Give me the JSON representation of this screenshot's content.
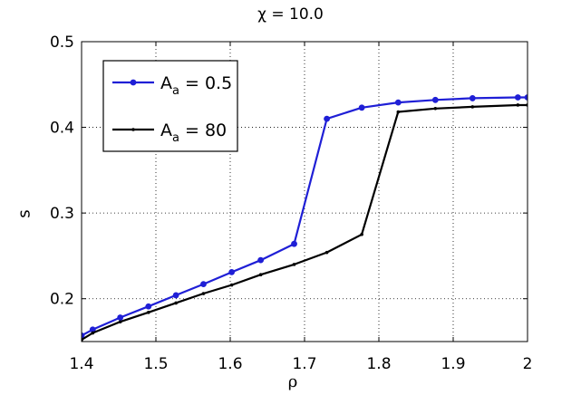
{
  "chart_data": {
    "type": "line",
    "title": "χ = 10.0",
    "xlabel": "ρ",
    "ylabel": "s",
    "xlim": [
      1.4,
      2.0
    ],
    "ylim": [
      0.15,
      0.5
    ],
    "xticks": [
      "1.4",
      "1.5",
      "1.6",
      "1.7",
      "1.8",
      "1.9",
      "2"
    ],
    "yticks": [
      "0.2",
      "0.3",
      "0.4",
      "0.5"
    ],
    "xtick_values": [
      1.4,
      1.5,
      1.6,
      1.7,
      1.8,
      1.9,
      2.0
    ],
    "ytick_values": [
      0.2,
      0.3,
      0.4,
      0.5
    ],
    "grid": true,
    "legend_position": "top-left",
    "series": [
      {
        "name_main": "A",
        "name_sub": "a",
        "name_rest": " = 0.5",
        "color": "#1f1fd6",
        "marker": "circle",
        "x": [
          1.4,
          1.415,
          1.452,
          1.49,
          1.527,
          1.564,
          1.602,
          1.641,
          1.686,
          1.73,
          1.777,
          1.826,
          1.876,
          1.926,
          1.987,
          2.0
        ],
        "y": [
          0.157,
          0.164,
          0.178,
          0.191,
          0.204,
          0.217,
          0.231,
          0.245,
          0.264,
          0.41,
          0.423,
          0.429,
          0.432,
          0.434,
          0.435,
          0.435
        ]
      },
      {
        "name_main": "A",
        "name_sub": "a",
        "name_rest": " = 80",
        "color": "#000000",
        "marker": "point",
        "x": [
          1.4,
          1.415,
          1.452,
          1.49,
          1.527,
          1.564,
          1.602,
          1.641,
          1.686,
          1.73,
          1.777,
          1.826,
          1.876,
          1.926,
          1.987,
          2.0
        ],
        "y": [
          0.152,
          0.16,
          0.173,
          0.184,
          0.195,
          0.206,
          0.216,
          0.228,
          0.24,
          0.254,
          0.275,
          0.418,
          0.422,
          0.424,
          0.426,
          0.426
        ]
      }
    ]
  }
}
